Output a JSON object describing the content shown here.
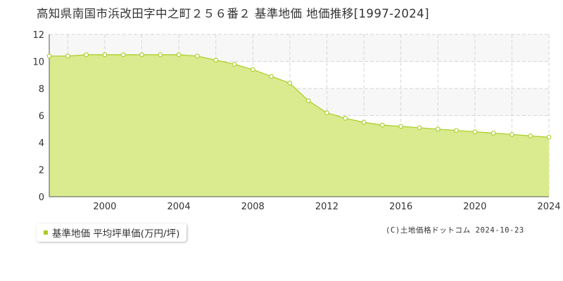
{
  "chart_data": {
    "type": "area",
    "title": "高知県南国市浜改田字中之町２５６番２ 基準地価 地価推移[1997-2024]",
    "xlabel": "",
    "ylabel": "",
    "xlim": [
      1997,
      2024
    ],
    "ylim": [
      0,
      12
    ],
    "x_ticks": [
      2000,
      2004,
      2008,
      2012,
      2016,
      2020,
      2024
    ],
    "y_ticks": [
      0,
      2,
      4,
      6,
      8,
      10,
      12
    ],
    "grid": true,
    "legend_position": "bottom-left",
    "series": [
      {
        "name": "基準地価 平均坪単価(万円/坪)",
        "color": "#aacc22",
        "fill": "#d9eb8e",
        "x": [
          1997,
          1998,
          1999,
          2000,
          2001,
          2002,
          2003,
          2004,
          2005,
          2006,
          2007,
          2008,
          2009,
          2010,
          2011,
          2012,
          2013,
          2014,
          2015,
          2016,
          2017,
          2018,
          2019,
          2020,
          2021,
          2022,
          2023,
          2024
        ],
        "y": [
          10.4,
          10.4,
          10.5,
          10.5,
          10.5,
          10.5,
          10.5,
          10.5,
          10.4,
          10.1,
          9.8,
          9.4,
          8.9,
          8.4,
          7.1,
          6.2,
          5.8,
          5.5,
          5.3,
          5.2,
          5.1,
          5.0,
          4.9,
          4.8,
          4.7,
          4.6,
          4.5,
          4.4
        ]
      }
    ]
  },
  "legend": {
    "label": "基準地価 平均坪単価(万円/坪)"
  },
  "footer": {
    "copyright": "(C)土地価格ドットコム 2024-10-23"
  },
  "colors": {
    "line": "#aacc22",
    "area": "#d9eb8e",
    "marker_fill": "#ffffff",
    "grid": "#d6d6d6",
    "band": "#f7f7f7"
  }
}
